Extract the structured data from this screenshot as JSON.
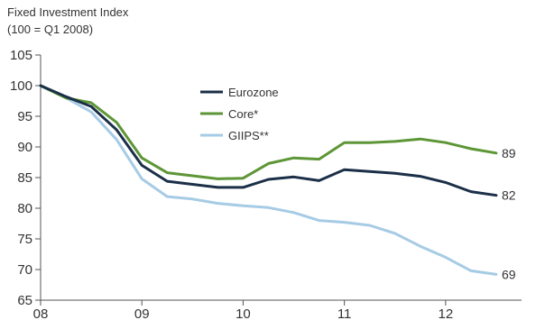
{
  "chart_data": {
    "type": "line",
    "title": "",
    "ylabel_lines": [
      "Fixed Investment Index",
      "(100 = Q1 2008)"
    ],
    "xlabel": "",
    "xlim": [
      2008,
      2012.75
    ],
    "ylim": [
      65,
      105
    ],
    "yticks": [
      65,
      70,
      75,
      80,
      85,
      90,
      95,
      100,
      105
    ],
    "xticks": [
      {
        "value": 2008,
        "label": "08"
      },
      {
        "value": 2009,
        "label": "09"
      },
      {
        "value": 2010,
        "label": "10"
      },
      {
        "value": 2011,
        "label": "11"
      },
      {
        "value": 2012,
        "label": "12"
      }
    ],
    "grid": false,
    "legend": "center",
    "x": [
      2008.0,
      2008.25,
      2008.5,
      2008.75,
      2009.0,
      2009.25,
      2009.5,
      2009.75,
      2010.0,
      2010.25,
      2010.5,
      2010.75,
      2011.0,
      2011.25,
      2011.5,
      2011.75,
      2012.0,
      2012.25,
      2012.5
    ],
    "series": [
      {
        "name": "Eurozone",
        "color": "#1b2f48",
        "end_label": "82",
        "values": [
          100,
          98.2,
          96.6,
          92.8,
          87.0,
          84.4,
          83.9,
          83.4,
          83.4,
          84.7,
          85.1,
          84.5,
          86.3,
          86.0,
          85.7,
          85.2,
          84.2,
          82.7,
          82.1
        ]
      },
      {
        "name": "Core*",
        "color": "#5d9636",
        "end_label": "89",
        "values": [
          100,
          98.0,
          97.2,
          94.0,
          88.2,
          85.8,
          85.3,
          84.8,
          84.9,
          87.3,
          88.2,
          88.0,
          90.7,
          90.7,
          90.9,
          91.3,
          90.7,
          89.7,
          89.0
        ]
      },
      {
        "name": "GIIPS**",
        "color": "#a6cbe5",
        "end_label": "69",
        "values": [
          100,
          98.0,
          95.7,
          91.2,
          84.8,
          81.9,
          81.5,
          80.8,
          80.4,
          80.1,
          79.3,
          78.0,
          77.7,
          77.2,
          75.9,
          73.8,
          72.0,
          69.8,
          69.2
        ]
      }
    ]
  }
}
